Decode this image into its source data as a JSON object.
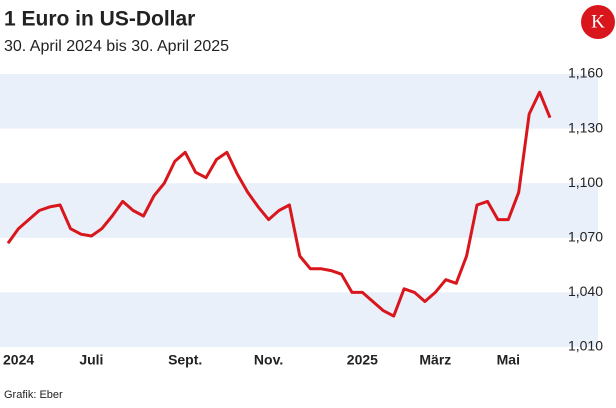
{
  "chart_data": {
    "type": "line",
    "title": "1 Euro in US-Dollar",
    "subtitle": "30. April 2024 bis 30. April 2025",
    "source": "Grafik: Eber",
    "logo": "K",
    "categories": [
      "2024",
      null,
      null,
      null,
      null,
      null,
      null,
      null,
      "Juli",
      null,
      null,
      null,
      null,
      null,
      null,
      null,
      null,
      "Sept.",
      null,
      null,
      null,
      null,
      null,
      null,
      null,
      "Nov.",
      null,
      null,
      null,
      null,
      null,
      null,
      null,
      null,
      "2025",
      null,
      null,
      null,
      null,
      null,
      null,
      "März",
      null,
      null,
      null,
      null,
      null,
      null,
      "Mai",
      null,
      null,
      null,
      null
    ],
    "series": [
      {
        "color": "#d9161c",
        "values": [
          1.067,
          1.075,
          1.08,
          1.085,
          1.087,
          1.088,
          1.075,
          1.072,
          1.071,
          1.075,
          1.082,
          1.09,
          1.085,
          1.082,
          1.093,
          1.1,
          1.112,
          1.117,
          1.106,
          1.103,
          1.113,
          1.117,
          1.105,
          1.095,
          1.087,
          1.08,
          1.085,
          1.088,
          1.06,
          1.053,
          1.053,
          1.052,
          1.05,
          1.04,
          1.04,
          1.035,
          1.03,
          1.027,
          1.042,
          1.04,
          1.035,
          1.04,
          1.047,
          1.045,
          1.06,
          1.088,
          1.09,
          1.08,
          1.08,
          1.095,
          1.138,
          1.15,
          1.136
        ]
      }
    ],
    "ylim": [
      1.01,
      1.16
    ],
    "yticks": [
      {
        "value": 1.01,
        "label": "1,010"
      },
      {
        "value": 1.04,
        "label": "1,040"
      },
      {
        "value": 1.07,
        "label": "1,070"
      },
      {
        "value": 1.1,
        "label": "1,100"
      },
      {
        "value": 1.13,
        "label": "1,130"
      },
      {
        "value": 1.16,
        "label": "1,160"
      }
    ],
    "bands": true
  }
}
